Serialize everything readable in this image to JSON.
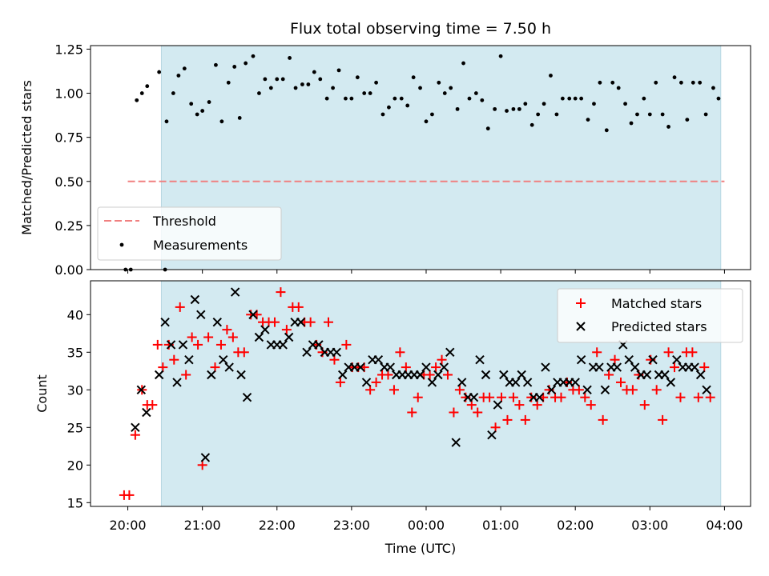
{
  "chart_data": {
    "title": "Flux total observing time = 7.50 h",
    "xlabel": "Time (UTC)",
    "x_unit": "hours from 20:00 UTC",
    "xlim": [
      -0.5,
      8.35
    ],
    "xticks": [
      {
        "value": 0,
        "label": "20:00"
      },
      {
        "value": 1,
        "label": "21:00"
      },
      {
        "value": 2,
        "label": "22:00"
      },
      {
        "value": 3,
        "label": "23:00"
      },
      {
        "value": 4,
        "label": "00:00"
      },
      {
        "value": 5,
        "label": "01:00"
      },
      {
        "value": 6,
        "label": "02:00"
      },
      {
        "value": 7,
        "label": "03:00"
      },
      {
        "value": 8,
        "label": "04:00"
      }
    ],
    "observing_window": {
      "start": 0.45,
      "end": 7.95,
      "color": "#d3eaf1"
    },
    "colors": {
      "threshold": "#f08080",
      "measurements": "#000000",
      "matched": "#ff0000",
      "predicted": "#000000"
    },
    "top": {
      "type": "scatter",
      "ylabel": "Matched/Predicted stars",
      "ylim": [
        0,
        1.27
      ],
      "yticks": [
        "0.00",
        "0.25",
        "0.50",
        "0.75",
        "1.00",
        "1.25"
      ],
      "threshold": {
        "name": "Threshold",
        "y": 0.5,
        "x_range": [
          0.0,
          8.0
        ]
      },
      "series_name": "Measurements",
      "legend_position": "lower-left",
      "points": [
        [
          -0.03,
          0
        ],
        [
          0.04,
          0
        ],
        [
          0.5,
          0
        ],
        [
          0.12,
          0.96
        ],
        [
          0.19,
          1.0
        ],
        [
          0.26,
          1.04
        ],
        [
          0.42,
          1.12
        ],
        [
          0.52,
          0.84
        ],
        [
          0.61,
          1.0
        ],
        [
          0.68,
          1.1
        ],
        [
          0.76,
          1.14
        ],
        [
          0.85,
          0.94
        ],
        [
          0.93,
          0.88
        ],
        [
          1.0,
          0.9
        ],
        [
          1.09,
          0.95
        ],
        [
          1.18,
          1.16
        ],
        [
          1.26,
          0.84
        ],
        [
          1.35,
          1.06
        ],
        [
          1.43,
          1.15
        ],
        [
          1.5,
          0.86
        ],
        [
          1.58,
          1.17
        ],
        [
          1.68,
          1.21
        ],
        [
          1.76,
          1.0
        ],
        [
          1.84,
          1.08
        ],
        [
          1.92,
          1.03
        ],
        [
          2.0,
          1.08
        ],
        [
          2.08,
          1.08
        ],
        [
          2.17,
          1.2
        ],
        [
          2.25,
          1.03
        ],
        [
          2.34,
          1.05
        ],
        [
          2.42,
          1.05
        ],
        [
          2.5,
          1.12
        ],
        [
          2.58,
          1.08
        ],
        [
          2.67,
          0.97
        ],
        [
          2.75,
          1.03
        ],
        [
          2.83,
          1.13
        ],
        [
          2.92,
          0.97
        ],
        [
          3.0,
          0.97
        ],
        [
          3.08,
          1.09
        ],
        [
          3.17,
          1.0
        ],
        [
          3.25,
          1.0
        ],
        [
          3.33,
          1.06
        ],
        [
          3.42,
          0.88
        ],
        [
          3.5,
          0.92
        ],
        [
          3.58,
          0.97
        ],
        [
          3.67,
          0.97
        ],
        [
          3.75,
          0.93
        ],
        [
          3.83,
          1.09
        ],
        [
          3.92,
          1.03
        ],
        [
          4.0,
          0.84
        ],
        [
          4.08,
          0.88
        ],
        [
          4.17,
          1.06
        ],
        [
          4.25,
          1.0
        ],
        [
          4.33,
          1.03
        ],
        [
          4.42,
          0.91
        ],
        [
          4.5,
          1.17
        ],
        [
          4.58,
          0.97
        ],
        [
          4.67,
          1.0
        ],
        [
          4.75,
          0.96
        ],
        [
          4.83,
          0.8
        ],
        [
          4.92,
          0.91
        ],
        [
          5.0,
          1.21
        ],
        [
          5.08,
          0.9
        ],
        [
          5.17,
          0.91
        ],
        [
          5.25,
          0.91
        ],
        [
          5.33,
          0.94
        ],
        [
          5.42,
          0.82
        ],
        [
          5.5,
          0.88
        ],
        [
          5.58,
          0.94
        ],
        [
          5.67,
          1.1
        ],
        [
          5.75,
          0.88
        ],
        [
          5.83,
          0.97
        ],
        [
          5.92,
          0.97
        ],
        [
          6.0,
          0.97
        ],
        [
          6.08,
          0.97
        ],
        [
          6.17,
          0.85
        ],
        [
          6.25,
          0.94
        ],
        [
          6.33,
          1.06
        ],
        [
          6.42,
          0.79
        ],
        [
          6.5,
          1.06
        ],
        [
          6.58,
          1.03
        ],
        [
          6.67,
          0.94
        ],
        [
          6.75,
          0.83
        ],
        [
          6.83,
          0.88
        ],
        [
          6.92,
          0.97
        ],
        [
          7.0,
          0.88
        ],
        [
          7.08,
          1.06
        ],
        [
          7.17,
          0.88
        ],
        [
          7.25,
          0.81
        ],
        [
          7.33,
          1.09
        ],
        [
          7.42,
          1.06
        ],
        [
          7.5,
          0.85
        ],
        [
          7.58,
          1.06
        ],
        [
          7.67,
          1.06
        ],
        [
          7.75,
          0.88
        ],
        [
          7.85,
          1.03
        ],
        [
          7.92,
          0.97
        ]
      ]
    },
    "bottom": {
      "type": "scatter",
      "ylabel": "Count",
      "ylim": [
        14.5,
        44.5
      ],
      "yticks": [
        15,
        20,
        25,
        30,
        35,
        40
      ],
      "legend_position": "upper-right",
      "series": [
        {
          "name": "Matched stars",
          "marker": "plus",
          "points": [
            [
              -0.05,
              16
            ],
            [
              0.02,
              16
            ],
            [
              0.1,
              24
            ],
            [
              0.19,
              30
            ],
            [
              0.26,
              28
            ],
            [
              0.33,
              28
            ],
            [
              0.4,
              36
            ],
            [
              0.47,
              33
            ],
            [
              0.55,
              36
            ],
            [
              0.62,
              34
            ],
            [
              0.7,
              41
            ],
            [
              0.78,
              32
            ],
            [
              0.86,
              37
            ],
            [
              0.94,
              36
            ],
            [
              1.0,
              20
            ],
            [
              1.08,
              37
            ],
            [
              1.17,
              33
            ],
            [
              1.25,
              36
            ],
            [
              1.33,
              38
            ],
            [
              1.41,
              37
            ],
            [
              1.48,
              35
            ],
            [
              1.56,
              35
            ],
            [
              1.65,
              40
            ],
            [
              1.73,
              40
            ],
            [
              1.81,
              39
            ],
            [
              1.89,
              39
            ],
            [
              1.97,
              39
            ],
            [
              2.05,
              43
            ],
            [
              2.13,
              38
            ],
            [
              2.21,
              41
            ],
            [
              2.29,
              41
            ],
            [
              2.37,
              39
            ],
            [
              2.45,
              39
            ],
            [
              2.53,
              36
            ],
            [
              2.61,
              35
            ],
            [
              2.69,
              39
            ],
            [
              2.77,
              34
            ],
            [
              2.85,
              31
            ],
            [
              2.93,
              36
            ],
            [
              3.01,
              33
            ],
            [
              3.09,
              33
            ],
            [
              3.17,
              33
            ],
            [
              3.25,
              30
            ],
            [
              3.33,
              31
            ],
            [
              3.41,
              32
            ],
            [
              3.49,
              32
            ],
            [
              3.57,
              30
            ],
            [
              3.65,
              35
            ],
            [
              3.73,
              33
            ],
            [
              3.81,
              27
            ],
            [
              3.89,
              29
            ],
            [
              3.97,
              32
            ],
            [
              4.05,
              32
            ],
            [
              4.13,
              33
            ],
            [
              4.21,
              34
            ],
            [
              4.29,
              32
            ],
            [
              4.37,
              27
            ],
            [
              4.45,
              30
            ],
            [
              4.53,
              29
            ],
            [
              4.61,
              28
            ],
            [
              4.69,
              27
            ],
            [
              4.77,
              29
            ],
            [
              4.85,
              29
            ],
            [
              4.93,
              25
            ],
            [
              5.01,
              29
            ],
            [
              5.09,
              26
            ],
            [
              5.17,
              29
            ],
            [
              5.25,
              28
            ],
            [
              5.33,
              26
            ],
            [
              5.41,
              29
            ],
            [
              5.49,
              28
            ],
            [
              5.57,
              29
            ],
            [
              5.65,
              30
            ],
            [
              5.73,
              29
            ],
            [
              5.81,
              29
            ],
            [
              5.89,
              31
            ],
            [
              5.97,
              30
            ],
            [
              6.05,
              30
            ],
            [
              6.13,
              29
            ],
            [
              6.21,
              28
            ],
            [
              6.29,
              35
            ],
            [
              6.37,
              26
            ],
            [
              6.45,
              32
            ],
            [
              6.53,
              34
            ],
            [
              6.61,
              31
            ],
            [
              6.69,
              30
            ],
            [
              6.77,
              30
            ],
            [
              6.85,
              32
            ],
            [
              6.93,
              28
            ],
            [
              7.01,
              34
            ],
            [
              7.09,
              30
            ],
            [
              7.17,
              26
            ],
            [
              7.25,
              35
            ],
            [
              7.33,
              33
            ],
            [
              7.41,
              29
            ],
            [
              7.49,
              35
            ],
            [
              7.57,
              35
            ],
            [
              7.65,
              29
            ],
            [
              7.73,
              33
            ],
            [
              7.81,
              29
            ]
          ]
        },
        {
          "name": "Predicted stars",
          "marker": "x",
          "points": [
            [
              0.1,
              25
            ],
            [
              0.18,
              30
            ],
            [
              0.25,
              27
            ],
            [
              0.42,
              32
            ],
            [
              0.5,
              39
            ],
            [
              0.58,
              36
            ],
            [
              0.66,
              31
            ],
            [
              0.74,
              36
            ],
            [
              0.82,
              34
            ],
            [
              0.9,
              42
            ],
            [
              0.98,
              40
            ],
            [
              1.04,
              21
            ],
            [
              1.12,
              32
            ],
            [
              1.2,
              39
            ],
            [
              1.28,
              34
            ],
            [
              1.36,
              33
            ],
            [
              1.44,
              43
            ],
            [
              1.52,
              32
            ],
            [
              1.6,
              29
            ],
            [
              1.68,
              40
            ],
            [
              1.76,
              37
            ],
            [
              1.84,
              38
            ],
            [
              1.92,
              36
            ],
            [
              2.0,
              36
            ],
            [
              2.08,
              36
            ],
            [
              2.16,
              37
            ],
            [
              2.24,
              39
            ],
            [
              2.32,
              39
            ],
            [
              2.4,
              35
            ],
            [
              2.48,
              36
            ],
            [
              2.56,
              36
            ],
            [
              2.64,
              35
            ],
            [
              2.72,
              35
            ],
            [
              2.8,
              35
            ],
            [
              2.88,
              32
            ],
            [
              2.96,
              33
            ],
            [
              3.04,
              33
            ],
            [
              3.12,
              33
            ],
            [
              3.2,
              31
            ],
            [
              3.28,
              34
            ],
            [
              3.36,
              34
            ],
            [
              3.44,
              33
            ],
            [
              3.52,
              33
            ],
            [
              3.6,
              32
            ],
            [
              3.68,
              32
            ],
            [
              3.76,
              32
            ],
            [
              3.84,
              32
            ],
            [
              3.92,
              32
            ],
            [
              4.0,
              33
            ],
            [
              4.08,
              31
            ],
            [
              4.16,
              32
            ],
            [
              4.24,
              33
            ],
            [
              4.32,
              35
            ],
            [
              4.4,
              23
            ],
            [
              4.48,
              31
            ],
            [
              4.56,
              29
            ],
            [
              4.64,
              29
            ],
            [
              4.72,
              34
            ],
            [
              4.8,
              32
            ],
            [
              4.88,
              24
            ],
            [
              4.96,
              28
            ],
            [
              5.04,
              32
            ],
            [
              5.12,
              31
            ],
            [
              5.2,
              31
            ],
            [
              5.28,
              32
            ],
            [
              5.36,
              31
            ],
            [
              5.44,
              29
            ],
            [
              5.52,
              29
            ],
            [
              5.6,
              33
            ],
            [
              5.68,
              30
            ],
            [
              5.76,
              31
            ],
            [
              5.84,
              31
            ],
            [
              5.92,
              31
            ],
            [
              6.0,
              31
            ],
            [
              6.08,
              34
            ],
            [
              6.16,
              30
            ],
            [
              6.24,
              33
            ],
            [
              6.32,
              33
            ],
            [
              6.4,
              30
            ],
            [
              6.48,
              33
            ],
            [
              6.56,
              33
            ],
            [
              6.64,
              36
            ],
            [
              6.72,
              34
            ],
            [
              6.8,
              33
            ],
            [
              6.88,
              32
            ],
            [
              6.96,
              32
            ],
            [
              7.04,
              34
            ],
            [
              7.12,
              32
            ],
            [
              7.2,
              32
            ],
            [
              7.28,
              31
            ],
            [
              7.36,
              34
            ],
            [
              7.44,
              33
            ],
            [
              7.52,
              33
            ],
            [
              7.6,
              33
            ],
            [
              7.68,
              32
            ],
            [
              7.76,
              30
            ]
          ]
        }
      ]
    }
  }
}
